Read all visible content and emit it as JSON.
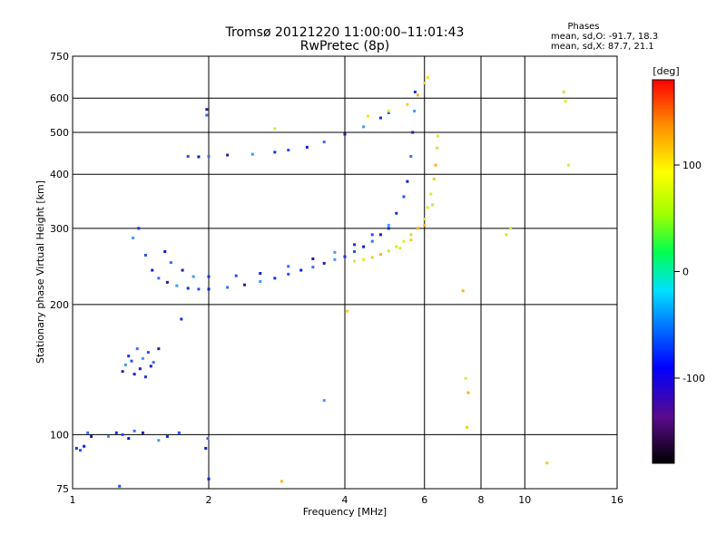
{
  "chart_data": {
    "type": "scatter",
    "title": "Tromsø 20121220 11:00:00–11:01:43",
    "subtitle": "RwPretec (8p)",
    "xlabel": "Frequency [MHz]",
    "ylabel": "Stationary phase Virtual Height [km]",
    "xscale": "log",
    "yscale": "log",
    "xlim": [
      1,
      16
    ],
    "ylim": [
      75,
      750
    ],
    "xticks": [
      1,
      2,
      4,
      6,
      8,
      10,
      16
    ],
    "yticks": [
      75,
      100,
      200,
      300,
      400,
      500,
      600,
      750
    ],
    "grid": true,
    "phases": {
      "heading": "Phases",
      "o_stats": "mean, sd,O: -91.7, 18.3",
      "x_stats": "mean, sd,X:  87.7, 21.1"
    },
    "colorbar": {
      "label": "[deg]",
      "min": -180,
      "max": 180,
      "ticks": [
        100,
        0,
        -100
      ]
    },
    "series": [
      {
        "mode": "O",
        "points": [
          [
            1.02,
            93
          ],
          [
            1.04,
            92
          ],
          [
            1.06,
            94
          ],
          [
            1.08,
            101
          ],
          [
            1.1,
            99
          ],
          [
            1.2,
            99
          ],
          [
            1.25,
            101
          ],
          [
            1.29,
            100
          ],
          [
            1.33,
            98
          ],
          [
            1.37,
            102
          ],
          [
            1.43,
            101
          ],
          [
            1.55,
            97
          ],
          [
            1.62,
            99
          ],
          [
            1.72,
            101
          ],
          [
            1.97,
            93
          ],
          [
            1.99,
            98
          ],
          [
            1.29,
            140
          ],
          [
            1.31,
            145
          ],
          [
            1.33,
            152
          ],
          [
            1.35,
            148
          ],
          [
            1.37,
            138
          ],
          [
            1.39,
            158
          ],
          [
            1.41,
            142
          ],
          [
            1.43,
            150
          ],
          [
            1.45,
            136
          ],
          [
            1.47,
            155
          ],
          [
            1.49,
            144
          ],
          [
            1.51,
            147
          ],
          [
            1.55,
            158
          ],
          [
            1.36,
            285
          ],
          [
            1.4,
            300
          ],
          [
            1.45,
            260
          ],
          [
            1.5,
            240
          ],
          [
            1.55,
            230
          ],
          [
            1.62,
            225
          ],
          [
            1.7,
            221
          ],
          [
            1.8,
            218
          ],
          [
            1.9,
            217
          ],
          [
            2.0,
            217
          ],
          [
            2.2,
            219
          ],
          [
            2.4,
            222
          ],
          [
            2.6,
            226
          ],
          [
            2.8,
            230
          ],
          [
            3.0,
            235
          ],
          [
            3.2,
            240
          ],
          [
            3.4,
            244
          ],
          [
            3.6,
            249
          ],
          [
            3.8,
            254
          ],
          [
            4.0,
            258
          ],
          [
            4.2,
            265
          ],
          [
            4.4,
            272
          ],
          [
            4.6,
            280
          ],
          [
            4.8,
            290
          ],
          [
            5.0,
            305
          ],
          [
            5.2,
            325
          ],
          [
            5.4,
            355
          ],
          [
            5.5,
            385
          ],
          [
            5.6,
            440
          ],
          [
            5.65,
            500
          ],
          [
            5.7,
            560
          ],
          [
            5.72,
            620
          ],
          [
            1.8,
            440
          ],
          [
            1.9,
            439
          ],
          [
            2.0,
            440
          ],
          [
            2.2,
            443
          ],
          [
            2.5,
            445
          ],
          [
            2.8,
            450
          ],
          [
            3.0,
            455
          ],
          [
            3.3,
            462
          ],
          [
            3.6,
            475
          ],
          [
            4.0,
            495
          ],
          [
            4.4,
            515
          ],
          [
            4.8,
            540
          ],
          [
            5.0,
            555
          ],
          [
            1.6,
            265
          ],
          [
            1.65,
            250
          ],
          [
            1.75,
            240
          ],
          [
            1.85,
            232
          ],
          [
            2.0,
            232
          ],
          [
            2.3,
            233
          ],
          [
            2.6,
            236
          ],
          [
            3.0,
            245
          ],
          [
            3.4,
            255
          ],
          [
            3.8,
            264
          ],
          [
            4.2,
            275
          ],
          [
            4.6,
            290
          ],
          [
            5.0,
            300
          ],
          [
            1.98,
            548
          ],
          [
            1.98,
            565
          ],
          [
            3.6,
            120
          ],
          [
            1.74,
            185
          ],
          [
            1.27,
            76
          ],
          [
            2.0,
            79
          ]
        ]
      },
      {
        "mode": "X",
        "points": [
          [
            4.2,
            252
          ],
          [
            4.4,
            254
          ],
          [
            4.6,
            257
          ],
          [
            4.8,
            261
          ],
          [
            5.0,
            266
          ],
          [
            5.2,
            272
          ],
          [
            5.4,
            280
          ],
          [
            5.6,
            290
          ],
          [
            5.8,
            300
          ],
          [
            6.0,
            315
          ],
          [
            6.1,
            335
          ],
          [
            6.2,
            360
          ],
          [
            6.3,
            390
          ],
          [
            6.35,
            420
          ],
          [
            6.4,
            460
          ],
          [
            6.42,
            490
          ],
          [
            5.3,
            270
          ],
          [
            5.6,
            282
          ],
          [
            6.0,
            305
          ],
          [
            6.25,
            340
          ],
          [
            4.5,
            545
          ],
          [
            5.0,
            560
          ],
          [
            5.5,
            580
          ],
          [
            5.8,
            610
          ],
          [
            6.0,
            650
          ],
          [
            6.1,
            670
          ],
          [
            2.8,
            510
          ],
          [
            4.05,
            193
          ],
          [
            7.3,
            215
          ],
          [
            9.3,
            300
          ],
          [
            9.1,
            290
          ],
          [
            7.4,
            135
          ],
          [
            7.45,
            104
          ],
          [
            7.5,
            125
          ],
          [
            12.2,
            620
          ],
          [
            12.3,
            590
          ],
          [
            12.5,
            420
          ],
          [
            11.2,
            86
          ],
          [
            2.9,
            78
          ]
        ]
      }
    ]
  }
}
